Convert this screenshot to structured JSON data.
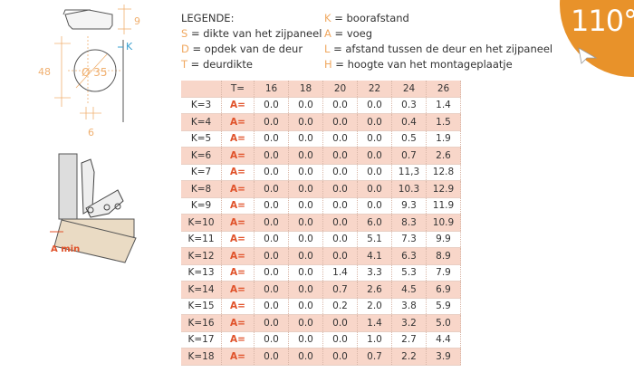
{
  "badge": {
    "angle": "110°",
    "color": "#e8922a"
  },
  "legend": {
    "title": "LEGENDE:",
    "left": [
      {
        "key": "S",
        "text": " = dikte van het zijpaneel"
      },
      {
        "key": "D",
        "text": " = opdek van de deur"
      },
      {
        "key": "T",
        "text": " = deurdikte"
      }
    ],
    "right": [
      {
        "key": "K",
        "text": " = boorafstand"
      },
      {
        "key": "A",
        "text": " = voeg"
      },
      {
        "key": "L",
        "text": " = afstand tussen de deur en het zijpaneel"
      },
      {
        "key": "H",
        "text": " = hoogte van het montageplaatje"
      }
    ]
  },
  "drawing": {
    "dim_9": "9",
    "dim_k": "K",
    "dim_48": "48",
    "dim_diameter": "Ø 35",
    "dim_6": "6",
    "a_min": "A min"
  },
  "table": {
    "t_label": "T=",
    "headers": [
      "16",
      "18",
      "20",
      "22",
      "24",
      "26"
    ],
    "a_label": "A=",
    "rows": [
      {
        "k": "K=3",
        "values": [
          "0.0",
          "0.0",
          "0.0",
          "0.0",
          "0.3",
          "1.4"
        ]
      },
      {
        "k": "K=4",
        "values": [
          "0.0",
          "0.0",
          "0.0",
          "0.0",
          "0.4",
          "1.5"
        ]
      },
      {
        "k": "K=5",
        "values": [
          "0.0",
          "0.0",
          "0.0",
          "0.0",
          "0.5",
          "1.9"
        ]
      },
      {
        "k": "K=6",
        "values": [
          "0.0",
          "0.0",
          "0.0",
          "0.0",
          "0.7",
          "2.6"
        ]
      },
      {
        "k": "K=7",
        "values": [
          "0.0",
          "0.0",
          "0.0",
          "0.0",
          "11,3",
          "12.8"
        ]
      },
      {
        "k": "K=8",
        "values": [
          "0.0",
          "0.0",
          "0.0",
          "0.0",
          "10.3",
          "12.9"
        ]
      },
      {
        "k": "K=9",
        "values": [
          "0.0",
          "0.0",
          "0.0",
          "0.0",
          "9.3",
          "11.9"
        ]
      },
      {
        "k": "K=10",
        "values": [
          "0.0",
          "0.0",
          "0.0",
          "6.0",
          "8.3",
          "10.9"
        ]
      },
      {
        "k": "K=11",
        "values": [
          "0.0",
          "0.0",
          "0.0",
          "5.1",
          "7.3",
          "9.9"
        ]
      },
      {
        "k": "K=12",
        "values": [
          "0.0",
          "0.0",
          "0.0",
          "4.1",
          "6.3",
          "8.9"
        ]
      },
      {
        "k": "K=13",
        "values": [
          "0.0",
          "0.0",
          "1.4",
          "3.3",
          "5.3",
          "7.9"
        ]
      },
      {
        "k": "K=14",
        "values": [
          "0.0",
          "0.0",
          "0.7",
          "2.6",
          "4.5",
          "6.9"
        ]
      },
      {
        "k": "K=15",
        "values": [
          "0.0",
          "0.0",
          "0.2",
          "2.0",
          "3.8",
          "5.9"
        ]
      },
      {
        "k": "K=16",
        "values": [
          "0.0",
          "0.0",
          "0.0",
          "1.4",
          "3.2",
          "5.0"
        ]
      },
      {
        "k": "K=17",
        "values": [
          "0.0",
          "0.0",
          "0.0",
          "1.0",
          "2.7",
          "4.4"
        ]
      },
      {
        "k": "K=18",
        "values": [
          "0.0",
          "0.0",
          "0.0",
          "0.7",
          "2.2",
          "3.9"
        ]
      }
    ]
  }
}
